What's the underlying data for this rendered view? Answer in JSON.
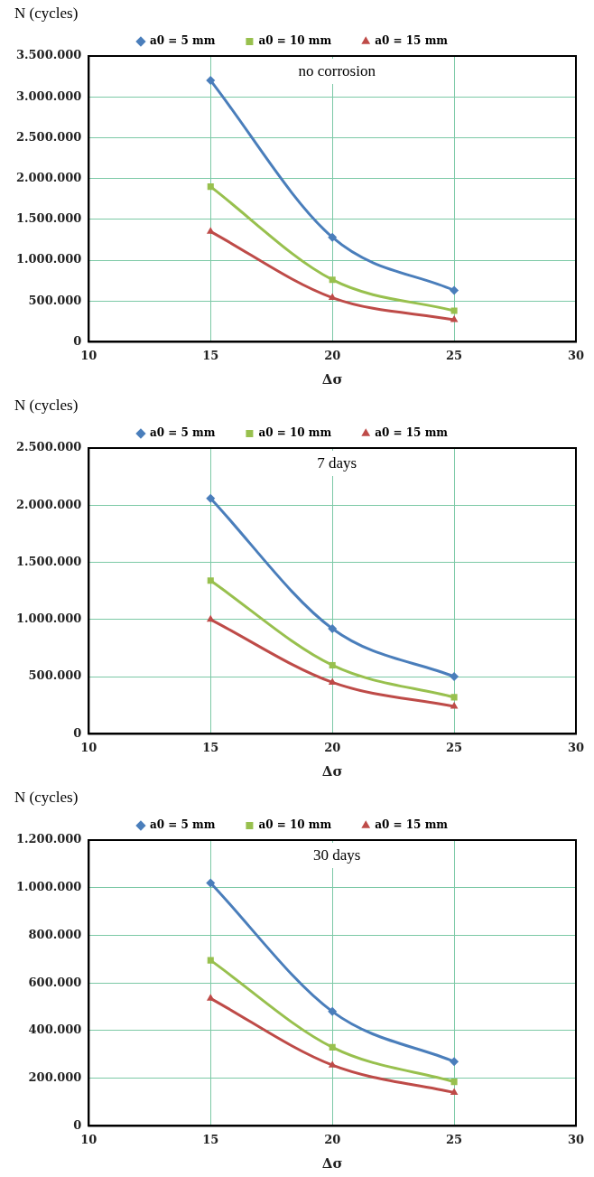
{
  "chart_data": [
    {
      "type": "line",
      "title": "no corrosion",
      "xlabel": "Δσ",
      "ylabel": "N (cycles)",
      "x": [
        15,
        20,
        25
      ],
      "xlim": [
        10,
        30
      ],
      "xticks": [
        10,
        15,
        20,
        25,
        30
      ],
      "ylim": [
        0,
        3500000
      ],
      "yticks": [
        {
          "value": 0,
          "label": "0"
        },
        {
          "value": 500000,
          "label": "500.000"
        },
        {
          "value": 1000000,
          "label": "1.000.000"
        },
        {
          "value": 1500000,
          "label": "1.500.000"
        },
        {
          "value": 2000000,
          "label": "2.000.000"
        },
        {
          "value": 2500000,
          "label": "2.500.000"
        },
        {
          "value": 3000000,
          "label": "3.000.000"
        },
        {
          "value": 3500000,
          "label": "3.500.000"
        }
      ],
      "grid": true,
      "legend": "top",
      "series": [
        {
          "name": "a0 = 5 mm",
          "color": "#4a7ebb",
          "marker": "diamond",
          "values": [
            3200000,
            1280000,
            630000
          ]
        },
        {
          "name": "a0 = 10 mm",
          "color": "#98c04e",
          "marker": "square",
          "values": [
            1900000,
            760000,
            380000
          ]
        },
        {
          "name": "a0 = 15 mm",
          "color": "#be4b48",
          "marker": "triangle",
          "values": [
            1350000,
            540000,
            270000
          ]
        }
      ]
    },
    {
      "type": "line",
      "title": "7 days",
      "xlabel": "Δσ",
      "ylabel": "N (cycles)",
      "x": [
        15,
        20,
        25
      ],
      "xlim": [
        10,
        30
      ],
      "xticks": [
        10,
        15,
        20,
        25,
        30
      ],
      "ylim": [
        0,
        2500000
      ],
      "yticks": [
        {
          "value": 0,
          "label": "0"
        },
        {
          "value": 500000,
          "label": "500.000"
        },
        {
          "value": 1000000,
          "label": "1.000.000"
        },
        {
          "value": 1500000,
          "label": "1.500.000"
        },
        {
          "value": 2000000,
          "label": "2.000.000"
        },
        {
          "value": 2500000,
          "label": "2.500.000"
        }
      ],
      "grid": true,
      "legend": "top",
      "series": [
        {
          "name": "a0 = 5 mm",
          "color": "#4a7ebb",
          "marker": "diamond",
          "values": [
            2060000,
            920000,
            500000
          ]
        },
        {
          "name": "a0 = 10 mm",
          "color": "#98c04e",
          "marker": "square",
          "values": [
            1340000,
            600000,
            320000
          ]
        },
        {
          "name": "a0 = 15 mm",
          "color": "#be4b48",
          "marker": "triangle",
          "values": [
            1000000,
            450000,
            240000
          ]
        }
      ]
    },
    {
      "type": "line",
      "title": "30 days",
      "xlabel": "Δσ",
      "ylabel": "N (cycles)",
      "x": [
        15,
        20,
        25
      ],
      "xlim": [
        10,
        30
      ],
      "xticks": [
        10,
        15,
        20,
        25,
        30
      ],
      "ylim": [
        0,
        1200000
      ],
      "yticks": [
        {
          "value": 0,
          "label": "0"
        },
        {
          "value": 200000,
          "label": "200.000"
        },
        {
          "value": 400000,
          "label": "400.000"
        },
        {
          "value": 600000,
          "label": "600.000"
        },
        {
          "value": 800000,
          "label": "800.000"
        },
        {
          "value": 1000000,
          "label": "1.000.000"
        },
        {
          "value": 1200000,
          "label": "1.200.000"
        }
      ],
      "grid": true,
      "legend": "top",
      "series": [
        {
          "name": "a0 = 5 mm",
          "color": "#4a7ebb",
          "marker": "diamond",
          "values": [
            1020000,
            480000,
            270000
          ]
        },
        {
          "name": "a0 = 10 mm",
          "color": "#98c04e",
          "marker": "square",
          "values": [
            695000,
            330000,
            185000
          ]
        },
        {
          "name": "a0 = 15 mm",
          "color": "#be4b48",
          "marker": "triangle",
          "values": [
            535000,
            255000,
            140000
          ]
        }
      ]
    }
  ]
}
